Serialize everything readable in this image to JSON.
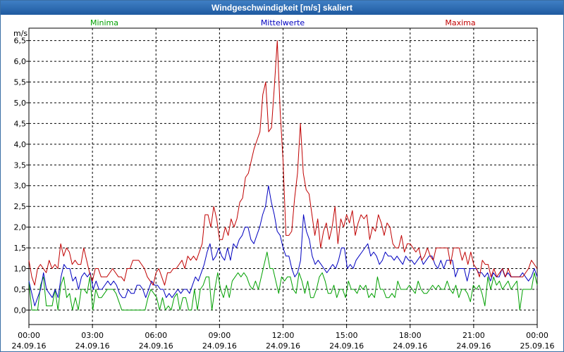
{
  "window": {
    "title": "Windgeschwindigkeit [m/s] skaliert"
  },
  "chart_data": {
    "type": "line",
    "title": "Windgeschwindigkeit [m/s] skaliert",
    "ylabel": "m/s",
    "xlabel": "",
    "ylim": [
      -0.35,
      6.8
    ],
    "xlim": [
      0,
      24
    ],
    "y_ticks": [
      "0,0",
      "0,5",
      "1,0",
      "1,5",
      "2,0",
      "2,5",
      "3,0",
      "3,5",
      "4,0",
      "4,5",
      "5,0",
      "5,5",
      "6,0",
      "6,5"
    ],
    "x_ticks": [
      {
        "time": "00:00",
        "date": "24.09.16"
      },
      {
        "time": "03:00",
        "date": "24.09.16"
      },
      {
        "time": "06:00",
        "date": "24.09.16"
      },
      {
        "time": "09:00",
        "date": "24.09.16"
      },
      {
        "time": "12:00",
        "date": "24.09.16"
      },
      {
        "time": "15:00",
        "date": "24.09.16"
      },
      {
        "time": "18:00",
        "date": "24.09.16"
      },
      {
        "time": "21:00",
        "date": "24.09.16"
      },
      {
        "time": "00:00",
        "date": "25.09.16"
      }
    ],
    "grid": true,
    "legend": [
      "Minima",
      "Mittelwerte",
      "Maxima"
    ],
    "series": [
      {
        "name": "Minima",
        "color": "#00a000",
        "values": [
          0.7,
          0.0,
          0.0,
          0.0,
          0.6,
          0.8,
          0.1,
          0.1,
          0.1,
          0.5,
          0.0,
          0.6,
          0.8,
          0.3,
          0.4,
          0.0,
          0.3,
          0.0,
          0.5,
          0.5,
          0.4,
          0.8,
          0.0,
          0.5,
          0.3,
          0.3,
          0.4,
          0.5,
          0.5,
          0.5,
          0.4,
          0.2,
          0.0,
          0.0,
          0.0,
          0.0,
          0.0,
          0.0,
          0.0,
          0.0,
          0.0,
          0.3,
          0.5,
          0.4,
          0.3,
          0.0,
          0.3,
          0.0,
          0.1,
          0.0,
          0.3,
          0.4,
          0.0,
          0.3,
          0.3,
          0.0,
          0.0,
          0.5,
          0.0,
          0.5,
          0.6,
          0.8,
          0.8,
          0.0,
          0.5,
          0.9,
          0.5,
          0.3,
          0.6,
          0.3,
          0.7,
          0.8,
          0.9,
          0.8,
          0.9,
          0.8,
          0.6,
          0.5,
          0.7,
          0.5,
          0.8,
          1.1,
          1.4,
          1.0,
          1.0,
          0.7,
          0.4,
          0.8,
          0.7,
          0.8,
          0.8,
          0.5,
          0.4,
          0.9,
          0.7,
          0.4,
          0.7,
          0.3,
          0.3,
          0.5,
          0.8,
          0.9,
          0.7,
          0.4,
          0.4,
          0.6,
          0.3,
          0.5,
          0.5,
          0.3,
          0.7,
          0.5,
          0.5,
          0.4,
          0.6,
          0.5,
          0.6,
          0.3,
          0.4,
          0.3,
          0.8,
          0.5,
          0.5,
          0.3,
          0.3,
          0.4,
          0.3,
          0.7,
          0.5,
          0.5,
          0.5,
          0.6,
          0.5,
          0.4,
          0.7,
          0.5,
          0.4,
          0.4,
          0.5,
          0.6,
          0.5,
          0.6,
          0.5,
          0.5,
          0.7,
          0.5,
          0.4,
          0.6,
          0.3,
          0.5,
          0.5,
          0.4,
          0.2,
          0.6,
          0.5,
          0.6,
          0.4,
          0.1,
          0.8,
          0.5,
          0.8,
          0.6,
          0.7,
          0.5,
          0.6,
          0.7,
          0.5,
          0.6,
          0.7,
          0.0,
          0.5,
          0.5,
          0.5,
          0.5,
          0.9,
          0.6
        ]
      },
      {
        "name": "Mittelwerte",
        "color": "#0000c0",
        "values": [
          0.7,
          0.4,
          0.1,
          0.3,
          0.5,
          0.9,
          0.5,
          0.4,
          0.3,
          0.5,
          0.3,
          0.8,
          1.1,
          1.0,
          1.0,
          0.7,
          0.8,
          0.5,
          0.8,
          0.9,
          0.8,
          0.9,
          0.5,
          0.7,
          0.5,
          0.5,
          0.6,
          0.7,
          0.6,
          0.7,
          0.6,
          0.4,
          0.3,
          0.3,
          0.5,
          0.4,
          0.4,
          0.6,
          0.6,
          0.5,
          0.3,
          0.5,
          0.7,
          0.6,
          0.6,
          0.5,
          0.5,
          0.3,
          0.4,
          0.3,
          0.4,
          0.5,
          0.4,
          0.5,
          0.5,
          0.4,
          0.6,
          0.8,
          0.7,
          0.9,
          1.1,
          1.4,
          1.6,
          1.2,
          1.3,
          1.5,
          1.3,
          1.2,
          1.5,
          1.2,
          1.6,
          1.5,
          1.7,
          1.8,
          2.0,
          2.0,
          1.7,
          1.6,
          1.8,
          2.0,
          2.3,
          2.5,
          3.0,
          2.6,
          2.3,
          1.9,
          1.8,
          1.5,
          1.3,
          1.3,
          1.0,
          0.8,
          0.9,
          1.2,
          2.3,
          1.9,
          1.7,
          1.3,
          1.1,
          1.2,
          1.1,
          1.0,
          0.9,
          1.0,
          1.1,
          1.0,
          1.2,
          1.5,
          1.5,
          1.0,
          1.1,
          1.0,
          1.2,
          1.3,
          1.4,
          1.5,
          1.6,
          1.3,
          1.4,
          1.3,
          1.1,
          1.2,
          1.4,
          1.3,
          1.3,
          1.2,
          1.3,
          1.2,
          1.1,
          1.3,
          1.2,
          1.2,
          1.1,
          1.2,
          1.3,
          1.1,
          1.2,
          1.3,
          1.3,
          1.1,
          1.0,
          1.2,
          1.0,
          1.2,
          1.2,
          1.2,
          0.8,
          1.0,
          1.0,
          1.0,
          0.7,
          1.0,
          1.0,
          1.0,
          0.9,
          0.9,
          0.8,
          0.9,
          0.7,
          0.9,
          0.8,
          0.8,
          1.0,
          0.8,
          0.9,
          0.8,
          0.8,
          0.8,
          0.8,
          0.9,
          0.8,
          0.7,
          0.8,
          1.0,
          0.8
        ]
      },
      {
        "name": "Maxima",
        "color": "#c00000",
        "values": [
          1.2,
          0.8,
          0.6,
          1.0,
          1.1,
          1.0,
          0.9,
          1.2,
          1.0,
          1.1,
          1.0,
          1.6,
          1.3,
          1.5,
          1.4,
          1.1,
          1.2,
          1.1,
          1.1,
          1.5,
          1.2,
          0.9,
          0.7,
          1.0,
          1.0,
          0.8,
          0.8,
          0.8,
          0.9,
          1.0,
          0.9,
          0.8,
          0.8,
          0.7,
          1.0,
          1.0,
          1.2,
          1.2,
          1.2,
          1.1,
          1.0,
          0.8,
          0.7,
          0.6,
          0.9,
          1.0,
          0.8,
          0.6,
          0.9,
          0.9,
          1.0,
          1.0,
          1.1,
          1.2,
          1.0,
          1.3,
          1.2,
          1.3,
          1.2,
          1.4,
          1.6,
          2.3,
          2.3,
          2.0,
          2.5,
          2.2,
          1.7,
          1.7,
          2.0,
          1.8,
          2.2,
          2.0,
          2.2,
          2.6,
          2.7,
          3.2,
          3.3,
          3.6,
          3.9,
          4.1,
          4.3,
          5.2,
          5.5,
          4.3,
          4.4,
          5.4,
          6.5,
          4.8,
          3.6,
          1.8,
          1.8,
          1.9,
          2.7,
          3.3,
          4.5,
          3.3,
          2.9,
          2.8,
          2.3,
          1.8,
          2.2,
          1.5,
          1.9,
          2.1,
          1.7,
          2.0,
          2.5,
          1.6,
          2.2,
          2.0,
          2.3,
          2.1,
          2.4,
          1.8,
          2.1,
          2.3,
          2.2,
          2.3,
          1.7,
          2.0,
          1.9,
          2.3,
          2.1,
          1.8,
          2.1,
          2.0,
          1.6,
          1.5,
          1.5,
          1.8,
          1.4,
          1.6,
          1.6,
          1.5,
          1.4,
          1.5,
          1.2,
          1.3,
          1.5,
          1.3,
          1.2,
          1.5,
          1.5,
          1.5,
          1.5,
          1.5,
          1.1,
          1.5,
          1.5,
          1.5,
          1.2,
          1.4,
          1.1,
          1.4,
          1.1,
          1.0,
          0.8,
          1.2,
          1.1,
          1.1,
          0.8,
          1.0,
          0.8,
          0.9,
          1.0,
          0.8,
          1.0,
          0.8,
          0.8,
          0.8,
          0.8,
          0.8,
          0.9,
          1.0,
          1.2,
          1.1,
          1.0
        ]
      }
    ]
  }
}
